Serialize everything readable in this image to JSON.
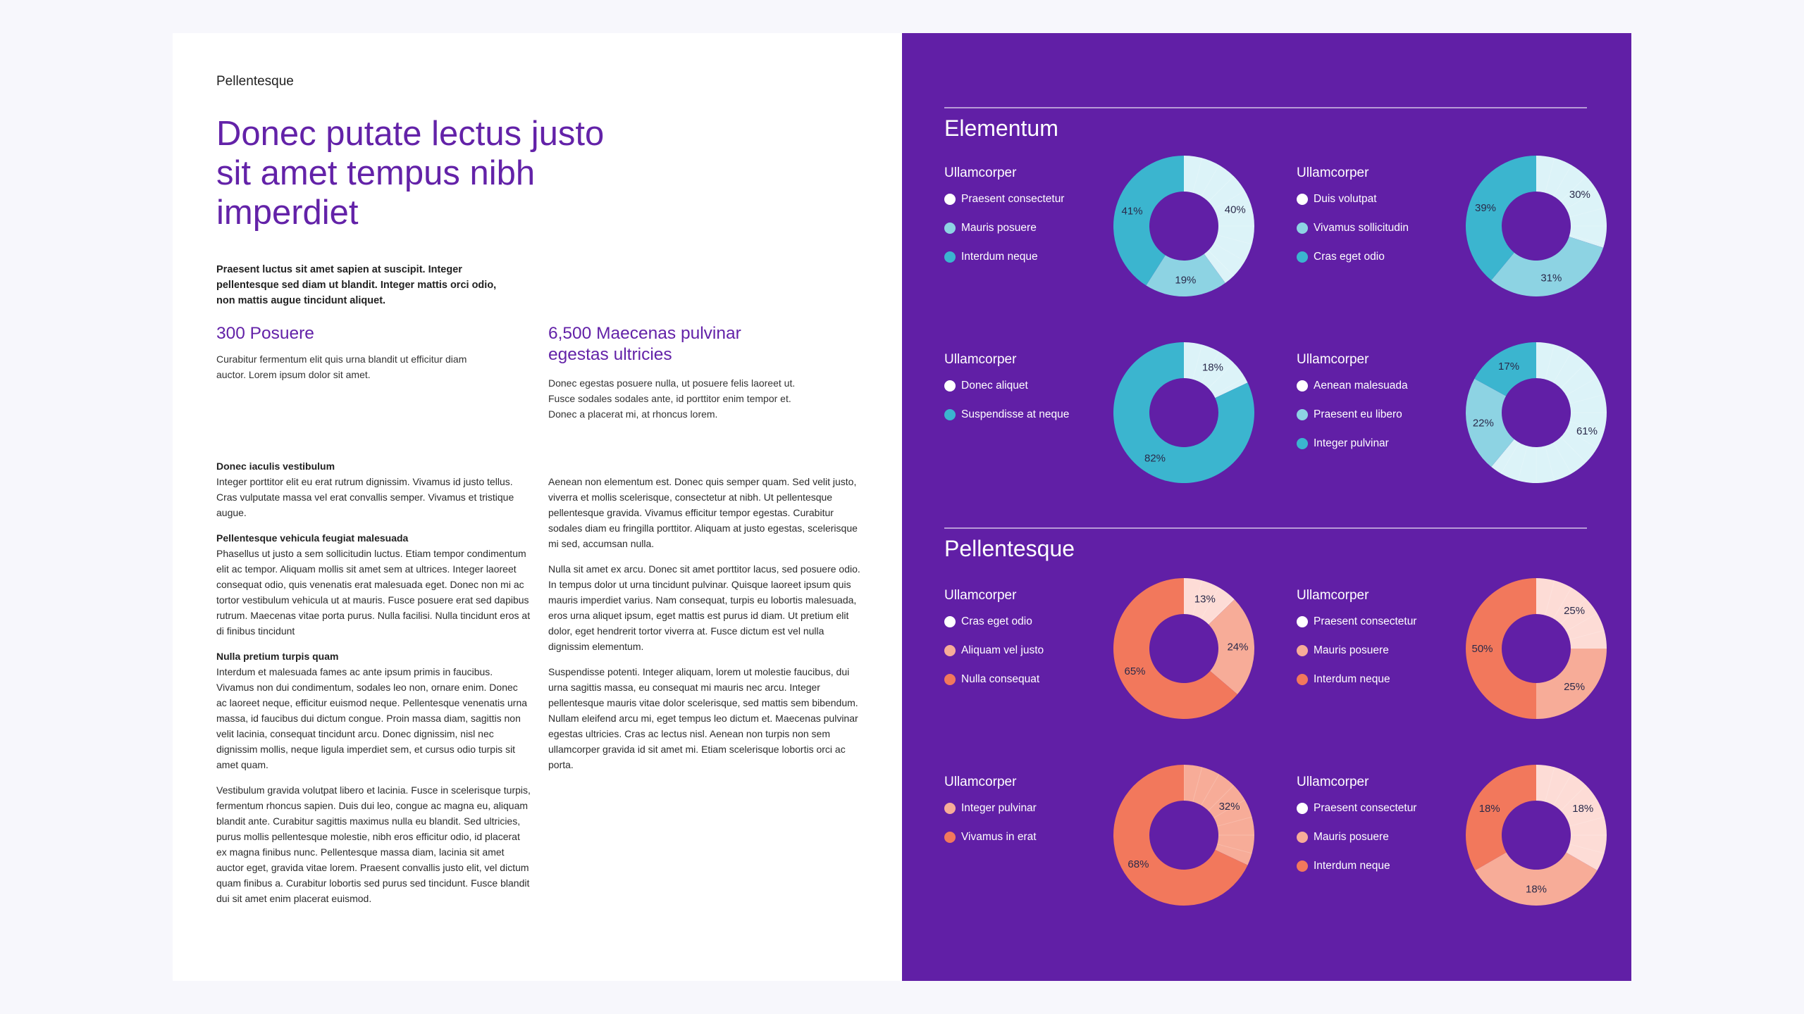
{
  "left": {
    "eyebrow": "Pellentesque",
    "headline": "Donec putate lectus justo sit amet tempus nibh imperdiet",
    "lede": "Praesent luctus sit amet sapien at suscipit. Integer pellentesque sed diam ut blandit. Integer mattis orci odio, non mattis augue tincidunt aliquet.",
    "stat1": {
      "title": "300 Posuere",
      "text": "Curabitur fermentum elit quis urna blandit ut efficitur diam auctor. Lorem ipsum dolor sit amet."
    },
    "stat2": {
      "title": "6,500  Maecenas pulvinar egestas ultricies",
      "text": "Donec egestas posuere nulla, ut posuere felis laoreet ut. Fusce sodales sodales ante, id porttitor enim tempor et. Donec a placerat mi, at rhoncus lorem."
    },
    "col1": {
      "h1": "Donec iaculis vestibulum",
      "p1": "Integer porttitor elit eu erat rutrum dignissim. Vivamus id justo tellus. Cras vulputate massa vel erat convallis semper. Vivamus et tristique augue.",
      "h2": "Pellentesque vehicula feugiat malesuada",
      "p2": "Phasellus ut justo a sem sollicitudin luctus. Etiam tempor condimentum elit ac tempor. Aliquam mollis sit amet sem at ultrices. Integer laoreet consequat odio, quis venenatis erat malesuada eget. Donec non mi ac tortor vestibulum vehicula ut at mauris. Fusce posuere erat sed dapibus rutrum. Maecenas vitae porta purus. Nulla facilisi. Nulla tincidunt eros at di finibus tincidunt",
      "h3": "Nulla pretium turpis quam",
      "p3": "Interdum et malesuada fames ac ante ipsum primis in faucibus. Vivamus non dui condimentum, sodales leo non, ornare enim. Donec ac laoreet neque, efficitur euismod neque. Pellentesque venenatis urna massa, id faucibus dui dictum congue. Proin massa diam, sagittis non velit lacinia, consequat tincidunt arcu. Donec dignissim, nisl nec dignissim mollis, neque ligula imperdiet sem, et cursus odio turpis sit amet quam.",
      "p4": "Vestibulum gravida volutpat libero et lacinia. Fusce in scelerisque turpis, fermentum rhoncus sapien. Duis dui leo, congue ac magna eu, aliquam blandit ante. Curabitur sagittis maximus nulla eu blandit. Sed ultricies, purus mollis pellentesque molestie, nibh eros efficitur odio, id placerat ex magna finibus nunc. Pellentesque massa diam, lacinia sit amet auctor eget, gravida vitae lorem. Praesent convallis justo elit, vel dictum quam finibus a. Curabitur lobortis sed purus sed tincidunt. Fusce blandit dui sit amet enim placerat euismod."
    },
    "col2": {
      "p1": "Aenean non elementum est. Donec quis semper quam. Sed velit justo, viverra et mollis scelerisque, consectetur at nibh. Ut pellentesque pellentesque gravida. Vivamus efficitur tempor egestas. Curabitur sodales diam eu fringilla porttitor. Aliquam at justo egestas, scelerisque mi sed, accumsan nulla.",
      "p2": "Nulla sit amet ex arcu. Donec sit amet porttitor lacus, sed posuere odio. In tempus dolor ut urna tincidunt pulvinar. Quisque laoreet ipsum quis mauris imperdiet varius. Nam consequat, turpis eu lobortis malesuada, eros urna aliquet ipsum, eget mattis est purus id diam. Ut pretium elit dolor, eget hendrerit tortor viverra at. Fusce dictum est vel nulla dignissim elementum.",
      "p3": "Suspendisse potenti. Integer aliquam, lorem ut molestie faucibus, dui urna sagittis massa, eu consequat mi mauris nec arcu. Integer pellentesque mauris vitae dolor scelerisque, sed mattis sem bibendum. Nullam eleifend arcu mi, eget tempus leo dictum et. Maecenas pulvinar egestas ultricies. Cras ac lectus nisl. Aenean non turpis non sem ullamcorper gravida id sit amet mi. Etiam scelerisque lobortis orci ac porta."
    }
  },
  "colors": {
    "accent": "#6322a8",
    "panel": "#611fa6",
    "white": "#ffffff",
    "teal_light": "#dcf3f8",
    "teal_mid": "#8dd3e3",
    "teal_dark": "#3bb5cf",
    "coral_light": "#fddcd6",
    "coral_mid": "#f7ac98",
    "coral_dark": "#f2785c"
  },
  "chart_data": [
    {
      "type": "pie",
      "section": "Elementum",
      "title": "Ullamcorper",
      "labels": [
        "Praesent consectetur",
        "Mauris posuere",
        "Interdum neque"
      ],
      "values": [
        40,
        19,
        41
      ],
      "colors": [
        "#dcf3f8",
        "#8dd3e3",
        "#3bb5cf"
      ],
      "legend_colors": [
        "#ffffff",
        "#8dd3e3",
        "#3bb5cf"
      ]
    },
    {
      "type": "pie",
      "section": "Elementum",
      "title": "Ullamcorper",
      "labels": [
        "Duis volutpat",
        "Vivamus sollicitudin",
        "Cras eget odio"
      ],
      "values": [
        30,
        31,
        39
      ],
      "colors": [
        "#dcf3f8",
        "#8dd3e3",
        "#3bb5cf"
      ],
      "legend_colors": [
        "#ffffff",
        "#8dd3e3",
        "#3bb5cf"
      ]
    },
    {
      "type": "pie",
      "section": "Elementum",
      "title": "Ullamcorper",
      "labels": [
        "Donec aliquet",
        "Suspendisse at neque"
      ],
      "values": [
        18,
        82
      ],
      "colors": [
        "#dcf3f8",
        "#3bb5cf"
      ],
      "legend_colors": [
        "#ffffff",
        "#3bb5cf"
      ]
    },
    {
      "type": "pie",
      "section": "Elementum",
      "title": "Ullamcorper",
      "labels": [
        "Aenean malesuada",
        "Praesent eu libero",
        "Integer pulvinar"
      ],
      "values": [
        61,
        22,
        17
      ],
      "colors": [
        "#dcf3f8",
        "#8dd3e3",
        "#3bb5cf"
      ],
      "legend_colors": [
        "#ffffff",
        "#8dd3e3",
        "#3bb5cf"
      ]
    },
    {
      "type": "pie",
      "section": "Pellentesque",
      "title": "Ullamcorper",
      "labels": [
        "Cras eget odio",
        "Aliquam vel justo",
        "Nulla consequat"
      ],
      "values": [
        13,
        24,
        65
      ],
      "colors": [
        "#fddcd6",
        "#f7ac98",
        "#f2785c"
      ],
      "legend_colors": [
        "#ffffff",
        "#f7ac98",
        "#f2785c"
      ]
    },
    {
      "type": "pie",
      "section": "Pellentesque",
      "title": "Ullamcorper",
      "labels": [
        "Praesent consectetur",
        "Mauris posuere",
        "Interdum neque"
      ],
      "values": [
        25,
        25,
        50
      ],
      "colors": [
        "#fddcd6",
        "#f7ac98",
        "#f2785c"
      ],
      "legend_colors": [
        "#ffffff",
        "#f7ac98",
        "#f2785c"
      ]
    },
    {
      "type": "pie",
      "section": "Pellentesque",
      "title": "Ullamcorper",
      "labels": [
        "Integer pulvinar",
        "Vivamus in erat"
      ],
      "values": [
        32,
        68
      ],
      "colors": [
        "#f7ac98",
        "#f2785c"
      ],
      "legend_colors": [
        "#f7ac98",
        "#f2785c"
      ]
    },
    {
      "type": "pie",
      "section": "Pellentesque",
      "title": "Ullamcorper",
      "labels": [
        "Praesent consectetur",
        "Mauris posuere",
        "Interdum neque"
      ],
      "values": [
        18,
        18,
        18
      ],
      "colors": [
        "#fddcd6",
        "#f7ac98",
        "#f2785c"
      ],
      "legend_colors": [
        "#ffffff",
        "#f7ac98",
        "#f2785c"
      ]
    }
  ],
  "right": {
    "section1": "Elementum",
    "section2": "Pellentesque"
  }
}
